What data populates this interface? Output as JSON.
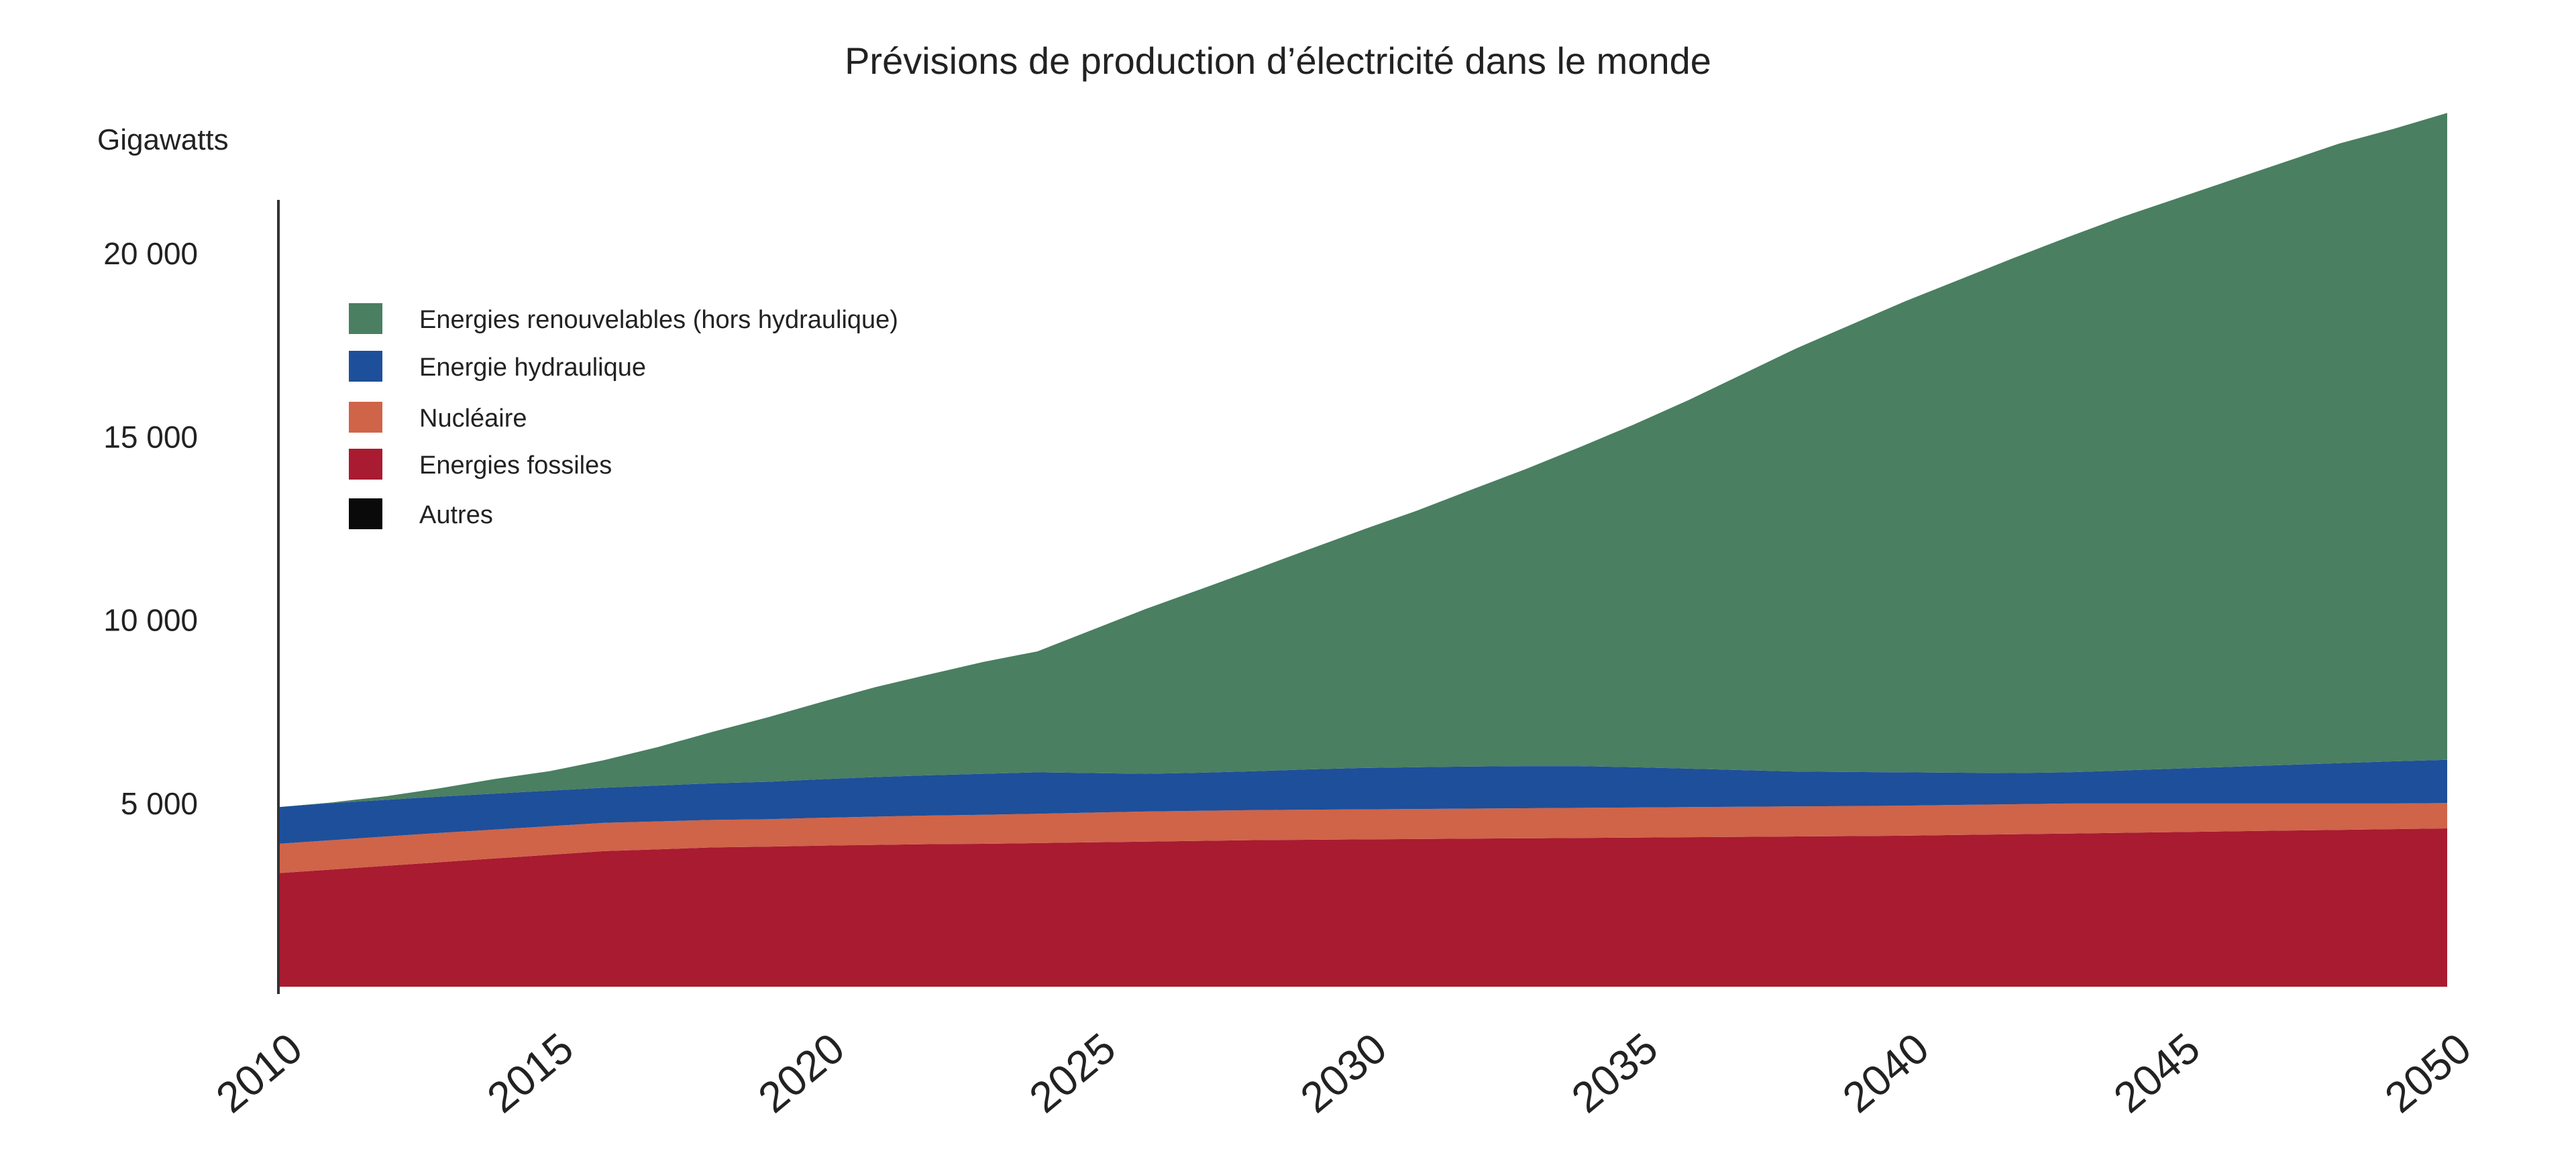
{
  "chart_data": {
    "type": "area",
    "stacked": true,
    "title": "Prévisions de production d’électricité dans le monde",
    "ylabel": "Gigawatts",
    "xlabel": "",
    "x": [
      2010,
      2011,
      2012,
      2013,
      2014,
      2015,
      2016,
      2017,
      2018,
      2019,
      2020,
      2021,
      2022,
      2023,
      2024,
      2025,
      2026,
      2027,
      2028,
      2029,
      2030,
      2031,
      2032,
      2033,
      2034,
      2035,
      2036,
      2037,
      2038,
      2039,
      2040,
      2041,
      2042,
      2043,
      2044,
      2045,
      2046,
      2047,
      2048,
      2049,
      2050
    ],
    "x_ticks": [
      2010,
      2015,
      2020,
      2025,
      2030,
      2035,
      2040,
      2045,
      2050
    ],
    "y_ticks": [
      5000,
      10000,
      15000,
      20000
    ],
    "y_tick_labels": [
      "5 000",
      "10 000",
      "15 000",
      "20 000"
    ],
    "ylim": [
      -200,
      22200
    ],
    "xlim": [
      2010,
      2050
    ],
    "grid": false,
    "legend_position": "top-left",
    "series": [
      {
        "name": "Autres",
        "color": "#0a0a0a",
        "values": [
          0,
          0,
          0,
          0,
          0,
          0,
          0,
          0,
          0,
          0,
          0,
          0,
          0,
          0,
          0,
          0,
          0,
          0,
          0,
          0,
          0,
          0,
          0,
          0,
          0,
          0,
          0,
          0,
          0,
          0,
          0,
          0,
          0,
          0,
          0,
          0,
          0,
          0,
          0,
          0,
          0
        ]
      },
      {
        "name": "Energies fossiles",
        "color": "#a91b30",
        "values": [
          3100,
          3200,
          3300,
          3400,
          3500,
          3600,
          3700,
          3750,
          3800,
          3820,
          3850,
          3870,
          3890,
          3900,
          3920,
          3940,
          3960,
          3980,
          4000,
          4010,
          4020,
          4030,
          4040,
          4050,
          4060,
          4070,
          4080,
          4090,
          4100,
          4110,
          4120,
          4140,
          4160,
          4180,
          4200,
          4220,
          4240,
          4260,
          4280,
          4300,
          4320
        ]
      },
      {
        "name": "Nucléaire",
        "color": "#cf6449",
        "values": [
          800,
          800,
          800,
          800,
          790,
          780,
          770,
          760,
          750,
          750,
          760,
          770,
          780,
          790,
          800,
          810,
          820,
          820,
          820,
          820,
          820,
          820,
          820,
          820,
          820,
          820,
          820,
          820,
          820,
          820,
          820,
          820,
          820,
          820,
          800,
          780,
          760,
          740,
          720,
          700,
          690
        ]
      },
      {
        "name": "Energie hydraulique",
        "color": "#1e4f9a",
        "values": [
          1000,
          1010,
          1000,
          990,
          980,
          970,
          960,
          980,
          1000,
          1020,
          1050,
          1080,
          1100,
          1120,
          1130,
          1080,
          1030,
          1040,
          1060,
          1100,
          1130,
          1140,
          1150,
          1150,
          1140,
          1100,
          1050,
          1000,
          950,
          930,
          910,
          880,
          850,
          850,
          900,
          950,
          1000,
          1050,
          1100,
          1150,
          1180
        ]
      },
      {
        "name": "Energies renouvelables (hors hydraulique)",
        "color": "#4a7f61",
        "values": [
          0,
          20,
          100,
          230,
          400,
          530,
          750,
          1050,
          1400,
          1750,
          2100,
          2450,
          2750,
          3050,
          3300,
          3900,
          4500,
          5000,
          5500,
          6000,
          6500,
          7000,
          7550,
          8100,
          8700,
          9350,
          10050,
          10800,
          11550,
          12200,
          12850,
          13450,
          14050,
          14600,
          15100,
          15550,
          16000,
          16450,
          16900,
          17250,
          17650
        ]
      }
    ]
  }
}
